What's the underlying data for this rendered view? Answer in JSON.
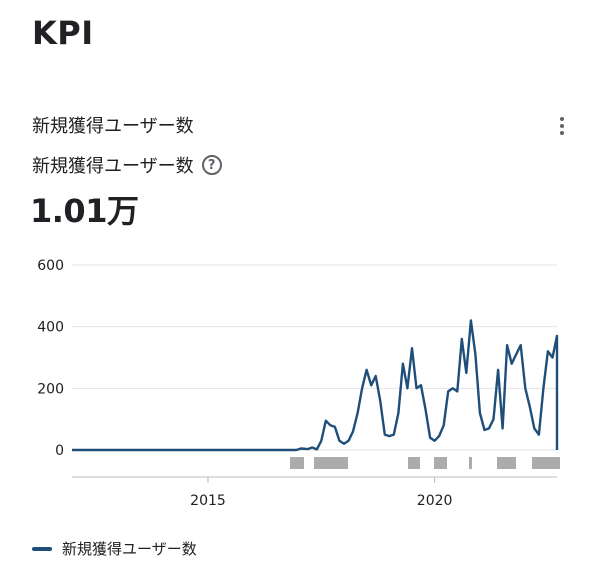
{
  "page": {
    "title": "KPI"
  },
  "card": {
    "header": "新規獲得ユーザー数",
    "metric_name": "新規獲得ユーザー数",
    "value": "1.01万",
    "help_icon": "help-circle-icon",
    "menu_icon": "more-vert-icon"
  },
  "chart_data": {
    "type": "line",
    "title": "",
    "xlabel": "",
    "ylabel": "",
    "ylim": [
      0,
      600
    ],
    "xlim": [
      2012.0,
      2022.7
    ],
    "y_ticks": [
      "0",
      "200",
      "400",
      "600"
    ],
    "x_ticks": [
      {
        "label": "2015",
        "value": 2015
      },
      {
        "label": "2020",
        "value": 2020
      }
    ],
    "grid": true,
    "legend": "bottom-left",
    "color": "#1f4e79",
    "series": [
      {
        "name": "新規獲得ユーザー数",
        "x": [
          2012.0,
          2013.0,
          2014.0,
          2015.0,
          2016.0,
          2016.95,
          2017.05,
          2017.2,
          2017.3,
          2017.4,
          2017.5,
          2017.6,
          2017.7,
          2017.8,
          2017.9,
          2018.0,
          2018.1,
          2018.2,
          2018.3,
          2018.4,
          2018.5,
          2018.6,
          2018.7,
          2018.8,
          2018.9,
          2019.0,
          2019.1,
          2019.2,
          2019.3,
          2019.4,
          2019.5,
          2019.6,
          2019.7,
          2019.8,
          2019.9,
          2020.0,
          2020.1,
          2020.2,
          2020.3,
          2020.4,
          2020.5,
          2020.6,
          2020.7,
          2020.8,
          2020.9,
          2021.0,
          2021.1,
          2021.2,
          2021.3,
          2021.4,
          2021.5,
          2021.6,
          2021.7,
          2021.8,
          2021.9,
          2022.0,
          2022.1,
          2022.2,
          2022.3,
          2022.4,
          2022.5,
          2022.6,
          2022.7
        ],
        "values": [
          0,
          0,
          0,
          0,
          0,
          0,
          5,
          3,
          8,
          2,
          30,
          95,
          80,
          75,
          30,
          20,
          30,
          60,
          120,
          200,
          260,
          210,
          240,
          160,
          50,
          45,
          50,
          120,
          280,
          200,
          330,
          200,
          210,
          130,
          40,
          30,
          45,
          80,
          190,
          200,
          190,
          360,
          250,
          420,
          310,
          120,
          65,
          70,
          100,
          260,
          70,
          340,
          280,
          310,
          340,
          200,
          140,
          70,
          50,
          200,
          320,
          300,
          370
        ]
      }
    ]
  }
}
